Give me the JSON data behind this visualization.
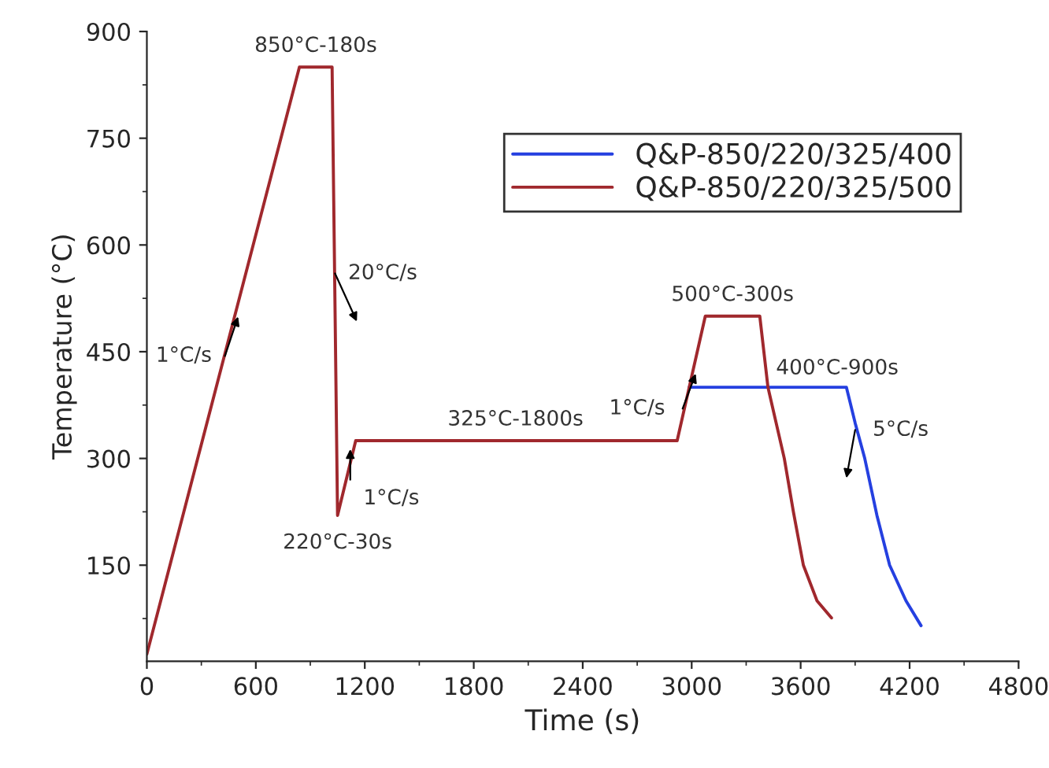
{
  "chart_data": {
    "type": "line",
    "xlabel": "Time (s)",
    "ylabel": "Temperature (°C)",
    "xlim": [
      0,
      4800
    ],
    "xticks": [
      0,
      600,
      1200,
      1800,
      2400,
      3000,
      3600,
      4200,
      4800
    ],
    "ylim": [
      15,
      900
    ],
    "yticks": [
      150,
      300,
      450,
      600,
      750,
      900
    ],
    "legend": "top right",
    "grid": false,
    "series": [
      {
        "name": "Q&P-850/220/325/400",
        "color": "#2540e0",
        "x": [
          2986,
          3852,
          3900,
          3953,
          4020,
          4090,
          4180,
          4263
        ],
        "values": [
          400,
          400,
          350,
          300,
          220,
          150,
          100,
          65
        ]
      },
      {
        "name": "Q&P-850/220/325/500",
        "color": "#a0282d",
        "x": [
          0,
          840,
          1020,
          1050,
          1150,
          2920,
          3075,
          3375,
          3420,
          3510,
          3560,
          3615,
          3690,
          3770
        ],
        "values": [
          25,
          850,
          850,
          220,
          325,
          325,
          500,
          500,
          400,
          300,
          225,
          150,
          100,
          76
        ]
      }
    ],
    "annotations": [
      {
        "text": "850°C-180s",
        "x": 930,
        "y": 850
      },
      {
        "text": "20°C/s",
        "x": 1036,
        "y": 560
      },
      {
        "text": "220°C-30s",
        "x": 1050,
        "y": 220
      },
      {
        "text": "1°C/s",
        "x": 1120,
        "y": 270
      },
      {
        "text": "325°C-1800s",
        "x": 2030,
        "y": 325
      },
      {
        "text": "1°C/s",
        "x": 2950,
        "y": 370
      },
      {
        "text": "500°C-300s",
        "x": 3225,
        "y": 500
      },
      {
        "text": "400°C-900s",
        "x": 3440,
        "y": 400
      },
      {
        "text": "5°C/s",
        "x": 3900,
        "y": 340
      },
      {
        "text": "1°C/s",
        "x": 430,
        "y": 444
      }
    ]
  }
}
